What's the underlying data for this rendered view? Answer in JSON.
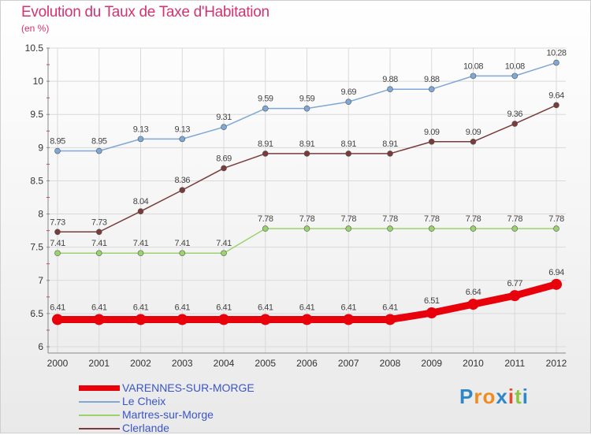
{
  "page": {
    "title": "Evolution du Taux de Taxe d'Habitation",
    "subtitle": "(en %)"
  },
  "chart_data": {
    "type": "line",
    "title": "Evolution du Taux de Taxe d'Habitation",
    "subtitle": "(en %)",
    "xlabel": "",
    "ylabel": "",
    "x": [
      "2000",
      "2001",
      "2002",
      "2003",
      "2004",
      "2005",
      "2006",
      "2007",
      "2008",
      "2009",
      "2010",
      "2011",
      "2012"
    ],
    "ylim": [
      6,
      10.5
    ],
    "yticks": [
      "6",
      "6.5",
      "7",
      "7.5",
      "8",
      "8.5",
      "9",
      "9.5",
      "10",
      "10.5"
    ],
    "grid": true,
    "legend_position": "bottom-left",
    "series": [
      {
        "name": "VARENNES-SUR-MORGE",
        "color": "#e8000b",
        "values": [
          6.41,
          6.41,
          6.41,
          6.41,
          6.41,
          6.41,
          6.41,
          6.41,
          6.41,
          6.51,
          6.64,
          6.77,
          6.94
        ],
        "labels": [
          "6.41",
          "6.41",
          "6.41",
          "6.41",
          "6.41",
          "6.41",
          "6.41",
          "6.41",
          "6.41",
          "6.51",
          "6.64",
          "6.77",
          "6.94"
        ]
      },
      {
        "name": "Le Cheix",
        "color": "#7fa8d6",
        "values": [
          8.95,
          8.95,
          9.13,
          9.13,
          9.31,
          9.59,
          9.59,
          9.69,
          9.88,
          9.88,
          10.08,
          10.08,
          10.28
        ],
        "labels": [
          "8.95",
          "8.95",
          "9.13",
          "9.13",
          "9.31",
          "9.59",
          "9.59",
          "9.69",
          "9.88",
          "9.88",
          "10.08",
          "10.08",
          "10.28"
        ]
      },
      {
        "name": "Martres-sur-Morge",
        "color": "#9ad36b",
        "values": [
          7.41,
          7.41,
          7.41,
          7.41,
          7.41,
          7.78,
          7.78,
          7.78,
          7.78,
          7.78,
          7.78,
          7.78,
          7.78
        ],
        "labels": [
          "7.41",
          "7.41",
          "7.41",
          "7.41",
          "7.41",
          "7.78",
          "7.78",
          "7.78",
          "7.78",
          "7.78",
          "7.78",
          "7.78",
          "7.78"
        ]
      },
      {
        "name": "Clerlande",
        "color": "#7a3b3b",
        "values": [
          7.73,
          7.73,
          8.04,
          8.36,
          8.69,
          8.91,
          8.91,
          8.91,
          8.91,
          9.09,
          9.09,
          9.36,
          9.64
        ],
        "labels": [
          "7.73",
          "7.73",
          "8.04",
          "8.36",
          "8.69",
          "8.91",
          "8.91",
          "8.91",
          "8.91",
          "9.09",
          "9.09",
          "9.36",
          "9.64"
        ]
      }
    ]
  },
  "logo": {
    "text": "Proxiti",
    "letters": [
      "P",
      "r",
      "o",
      "x",
      "i",
      "t",
      "i"
    ],
    "colors": [
      "#2f86c9",
      "#f08b1e",
      "#f08b1e",
      "#2f86c9",
      "#e34a2f",
      "#8cc63f",
      "#2f86c9"
    ]
  }
}
